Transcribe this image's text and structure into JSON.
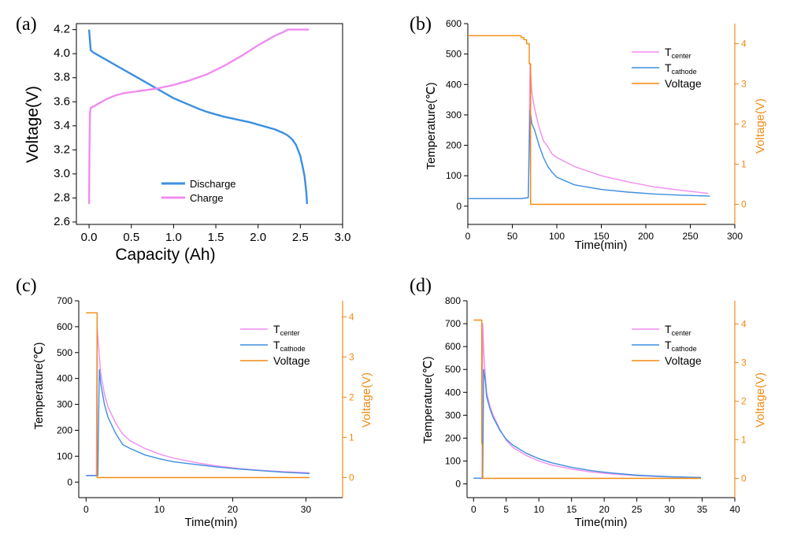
{
  "chart_data": [
    {
      "panel": "(a)",
      "type": "line",
      "xlabel": "Capacity (Ah)",
      "ylabel": "Voltage(V)",
      "xlim": [
        -0.15,
        3.0
      ],
      "ylim": [
        2.58,
        4.25
      ],
      "xticks": [
        "0.0",
        "0.5",
        "1.0",
        "1.5",
        "2.0",
        "2.5",
        "3.0"
      ],
      "yticks": [
        "2.6",
        "2.8",
        "3.0",
        "3.2",
        "3.4",
        "3.6",
        "3.8",
        "4.0",
        "4.2"
      ],
      "legend_position": "bottom-center",
      "series": [
        {
          "name": "Discharge",
          "color": "#3c8fe0",
          "x": [
            0,
            0.02,
            0.05,
            0.1,
            0.2,
            0.3,
            0.4,
            0.5,
            0.6,
            0.7,
            0.8,
            0.9,
            1.0,
            1.1,
            1.2,
            1.3,
            1.4,
            1.5,
            1.6,
            1.7,
            1.8,
            1.9,
            2.0,
            2.1,
            2.2,
            2.3,
            2.35,
            2.4,
            2.45,
            2.5,
            2.53,
            2.55,
            2.57,
            2.58
          ],
          "y": [
            4.2,
            4.03,
            4.01,
            3.99,
            3.95,
            3.91,
            3.87,
            3.83,
            3.79,
            3.75,
            3.71,
            3.67,
            3.63,
            3.6,
            3.57,
            3.54,
            3.515,
            3.495,
            3.475,
            3.46,
            3.445,
            3.43,
            3.41,
            3.39,
            3.37,
            3.34,
            3.32,
            3.29,
            3.24,
            3.15,
            3.05,
            2.98,
            2.85,
            2.75
          ]
        },
        {
          "name": "Charge",
          "color": "#f08cf0",
          "x": [
            0,
            0.005,
            0.01,
            0.02,
            0.05,
            0.1,
            0.2,
            0.3,
            0.4,
            0.5,
            0.6,
            0.7,
            0.8,
            0.9,
            1.0,
            1.2,
            1.4,
            1.6,
            1.8,
            2.0,
            2.1,
            2.2,
            2.3,
            2.35,
            2.4,
            2.5,
            2.6
          ],
          "y": [
            2.75,
            3.2,
            3.5,
            3.55,
            3.56,
            3.58,
            3.62,
            3.65,
            3.67,
            3.68,
            3.69,
            3.7,
            3.71,
            3.725,
            3.74,
            3.78,
            3.83,
            3.9,
            3.98,
            4.07,
            4.11,
            4.15,
            4.18,
            4.2,
            4.2,
            4.2,
            4.2
          ]
        }
      ]
    },
    {
      "panel": "(b)",
      "type": "line",
      "xlabel": "Time(min)",
      "ylabel": "Temperature(℃)",
      "y2label": "Voltage(V)",
      "xlim": [
        0,
        300
      ],
      "ylim": [
        -60,
        600
      ],
      "y2lim": [
        -0.5,
        4.5
      ],
      "xticks": [
        "0",
        "50",
        "100",
        "150",
        "200",
        "250",
        "300"
      ],
      "yticks": [
        "0",
        "100",
        "200",
        "300",
        "400",
        "500",
        "600"
      ],
      "y2ticks": [
        "0",
        "1",
        "2",
        "3",
        "4"
      ],
      "legend_position": "top-right",
      "legend": [
        {
          "name": "T",
          "sub": "center",
          "color": "#f08cf0"
        },
        {
          "name": "T",
          "sub": "cathode",
          "color": "#3c8fe0"
        },
        {
          "name": "Voltage",
          "sub": "",
          "color": "#f28a10"
        }
      ],
      "series": [
        {
          "key": "center",
          "axis": "left",
          "color": "#f08cf0",
          "x": [
            0,
            60,
            68,
            70,
            72,
            75,
            80,
            85,
            90,
            95,
            100,
            120,
            150,
            180,
            210,
            240,
            270
          ],
          "y": [
            25,
            25,
            28,
            465,
            370,
            320,
            260,
            215,
            195,
            170,
            160,
            130,
            100,
            80,
            63,
            52,
            42
          ]
        },
        {
          "key": "cathode",
          "axis": "left",
          "color": "#3c8fe0",
          "x": [
            0,
            60,
            68,
            70,
            72,
            75,
            80,
            85,
            90,
            95,
            100,
            120,
            150,
            180,
            210,
            240,
            272
          ],
          "y": [
            25,
            25,
            28,
            315,
            270,
            250,
            200,
            160,
            130,
            110,
            95,
            70,
            55,
            46,
            40,
            36,
            33
          ]
        },
        {
          "key": "voltage",
          "axis": "right",
          "color": "#f28a10",
          "x": [
            0,
            60,
            60,
            63,
            63,
            66,
            66,
            69,
            69,
            70.5,
            70.5,
            268
          ],
          "y": [
            4.2,
            4.2,
            4.15,
            4.15,
            4.1,
            4.1,
            4.0,
            4.0,
            3.5,
            3.5,
            0.0,
            0.0
          ]
        }
      ]
    },
    {
      "panel": "(c)",
      "type": "line",
      "xlabel": "Time(min)",
      "ylabel": "Temperature(℃)",
      "y2label": "Voltage(V)",
      "xlim": [
        -1,
        35
      ],
      "ylim": [
        -60,
        700
      ],
      "y2lim": [
        -0.5,
        4.4
      ],
      "xticks": [
        "0",
        "10",
        "20",
        "30"
      ],
      "yticks": [
        "0",
        "100",
        "200",
        "300",
        "400",
        "500",
        "600",
        "700"
      ],
      "y2ticks": [
        "0",
        "1",
        "2",
        "3",
        "4"
      ],
      "legend_position": "top-right",
      "legend": [
        {
          "name": "T",
          "sub": "center",
          "color": "#f08cf0"
        },
        {
          "name": "T",
          "sub": "cathode",
          "color": "#3c8fe0"
        },
        {
          "name": "Voltage",
          "sub": "",
          "color": "#f28a10"
        }
      ],
      "series": [
        {
          "key": "center",
          "axis": "left",
          "color": "#f08cf0",
          "x": [
            0,
            1.4,
            1.5,
            1.6,
            2,
            2.5,
            3,
            4,
            5,
            6,
            8,
            10,
            12,
            15,
            18,
            21,
            24,
            27,
            30.5
          ],
          "y": [
            25,
            25,
            600,
            560,
            420,
            340,
            290,
            230,
            185,
            160,
            130,
            108,
            92,
            75,
            62,
            52,
            45,
            40,
            36
          ]
        },
        {
          "key": "cathode",
          "axis": "left",
          "color": "#3c8fe0",
          "x": [
            0,
            1.6,
            1.8,
            2,
            2.5,
            3,
            4,
            5,
            6,
            8,
            10,
            12,
            15,
            18,
            21,
            24,
            27,
            30.5
          ],
          "y": [
            25,
            25,
            435,
            380,
            300,
            250,
            190,
            145,
            130,
            105,
            90,
            78,
            68,
            58,
            50,
            44,
            38,
            33
          ]
        },
        {
          "key": "voltage",
          "axis": "right",
          "color": "#f28a10",
          "x": [
            0,
            1.5,
            1.5,
            30.5
          ],
          "y": [
            4.1,
            4.1,
            0.0,
            0.0
          ]
        }
      ]
    },
    {
      "panel": "(d)",
      "type": "line",
      "xlabel": "Time(min)",
      "ylabel": "Temperature(℃)",
      "y2label": "Voltage(V)",
      "xlim": [
        -1,
        40
      ],
      "ylim": [
        -60,
        800
      ],
      "y2lim": [
        -0.5,
        4.6
      ],
      "xticks": [
        "0",
        "5",
        "10",
        "15",
        "20",
        "25",
        "30",
        "35",
        "40"
      ],
      "yticks": [
        "0",
        "100",
        "200",
        "300",
        "400",
        "500",
        "600",
        "700",
        "800"
      ],
      "y2ticks": [
        "0",
        "1",
        "2",
        "3",
        "4"
      ],
      "legend_position": "top-right",
      "legend": [
        {
          "name": "T",
          "sub": "center",
          "color": "#f08cf0"
        },
        {
          "name": "T",
          "sub": "cathode",
          "color": "#3c8fe0"
        },
        {
          "name": "Voltage",
          "sub": "",
          "color": "#f28a10"
        }
      ],
      "series": [
        {
          "key": "center",
          "axis": "left",
          "color": "#f08cf0",
          "x": [
            0,
            1.3,
            1.4,
            1.6,
            2,
            2.5,
            3,
            4,
            5,
            6,
            8,
            10,
            12,
            15,
            18,
            21,
            25,
            30,
            34.8
          ],
          "y": [
            25,
            25,
            700,
            550,
            400,
            340,
            300,
            240,
            190,
            160,
            125,
            100,
            82,
            65,
            52,
            44,
            36,
            30,
            28
          ]
        },
        {
          "key": "cathode",
          "axis": "left",
          "color": "#3c8fe0",
          "x": [
            0,
            1.4,
            1.55,
            1.8,
            2,
            2.5,
            3,
            4,
            5,
            6,
            8,
            10,
            12,
            15,
            18,
            21,
            25,
            30,
            34.8
          ],
          "y": [
            25,
            25,
            500,
            450,
            380,
            330,
            290,
            235,
            195,
            170,
            135,
            110,
            92,
            72,
            58,
            48,
            38,
            31,
            28
          ]
        },
        {
          "key": "voltage",
          "axis": "right",
          "color": "#f28a10",
          "x": [
            0,
            1.25,
            1.25,
            1.35,
            1.35,
            34.8
          ],
          "y": [
            4.1,
            4.1,
            0.9,
            0.9,
            0.0,
            0.0
          ]
        }
      ]
    }
  ]
}
